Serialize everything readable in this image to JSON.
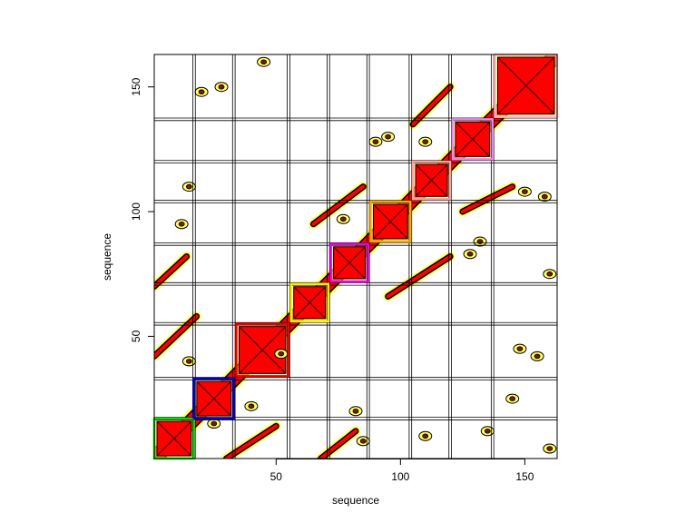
{
  "chart_data": {
    "type": "heatmap",
    "title": "",
    "xlabel": "sequence",
    "ylabel": "sequence",
    "xlim": [
      1,
      163
    ],
    "ylim": [
      1,
      163
    ],
    "x_ticks": [
      "50",
      "100",
      "150"
    ],
    "y_ticks": [
      "50",
      "100",
      "150"
    ],
    "x_tick_values": [
      50,
      100,
      150
    ],
    "y_tick_values": [
      50,
      100,
      150
    ],
    "grid": true,
    "segment_boundaries": [
      17,
      33,
      55,
      71,
      87,
      104,
      120,
      137
    ],
    "contour_colors": [
      "#ffff66",
      "#ff0000",
      "#000000"
    ],
    "domains": [
      {
        "start": 1,
        "end": 17,
        "color": "#00dd00"
      },
      {
        "start": 17,
        "end": 33,
        "color": "#0000cc"
      },
      {
        "start": 34,
        "end": 55,
        "color": "#ee0000"
      },
      {
        "start": 56,
        "end": 71,
        "color": "#ffee00"
      },
      {
        "start": 72,
        "end": 87,
        "color": "#ee00ee"
      },
      {
        "start": 88,
        "end": 104,
        "color": "#ffa500"
      },
      {
        "start": 105,
        "end": 120,
        "color": "#ffa0a0"
      },
      {
        "start": 121,
        "end": 137,
        "color": "#ee88ee"
      },
      {
        "start": 138,
        "end": 163,
        "color": "#ffb6c1"
      }
    ],
    "contact_bands": [
      {
        "x": [
          30,
          50
        ],
        "y": [
          1,
          14
        ]
      },
      {
        "x": [
          68,
          82
        ],
        "y": [
          1,
          12
        ]
      },
      {
        "x": [
          1,
          18
        ],
        "y": [
          42,
          58
        ]
      },
      {
        "x": [
          1,
          14
        ],
        "y": [
          70,
          82
        ]
      },
      {
        "x": [
          95,
          120
        ],
        "y": [
          66,
          82
        ]
      },
      {
        "x": [
          125,
          145
        ],
        "y": [
          100,
          110
        ]
      },
      {
        "x": [
          105,
          120
        ],
        "y": [
          135,
          150
        ]
      },
      {
        "x": [
          65,
          85
        ],
        "y": [
          95,
          110
        ]
      }
    ],
    "contact_blobs": [
      {
        "x": 15,
        "y": 40
      },
      {
        "x": 25,
        "y": 15
      },
      {
        "x": 40,
        "y": 22
      },
      {
        "x": 52,
        "y": 43
      },
      {
        "x": 82,
        "y": 20
      },
      {
        "x": 85,
        "y": 8
      },
      {
        "x": 110,
        "y": 10
      },
      {
        "x": 135,
        "y": 12
      },
      {
        "x": 145,
        "y": 25
      },
      {
        "x": 148,
        "y": 45
      },
      {
        "x": 155,
        "y": 42
      },
      {
        "x": 160,
        "y": 5
      },
      {
        "x": 12,
        "y": 95
      },
      {
        "x": 15,
        "y": 110
      },
      {
        "x": 20,
        "y": 148
      },
      {
        "x": 28,
        "y": 150
      },
      {
        "x": 45,
        "y": 160
      },
      {
        "x": 77,
        "y": 97
      },
      {
        "x": 90,
        "y": 128
      },
      {
        "x": 95,
        "y": 130
      },
      {
        "x": 110,
        "y": 128
      },
      {
        "x": 128,
        "y": 83
      },
      {
        "x": 132,
        "y": 88
      },
      {
        "x": 150,
        "y": 108
      },
      {
        "x": 158,
        "y": 106
      },
      {
        "x": 160,
        "y": 75
      }
    ]
  }
}
